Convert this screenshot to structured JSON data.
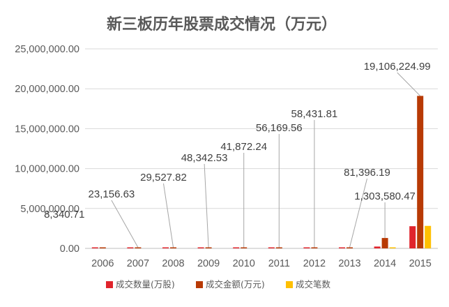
{
  "chart_data": {
    "type": "bar",
    "title": "新三板历年股票成交情况（万元）",
    "categories": [
      "2006",
      "2007",
      "2008",
      "2009",
      "2010",
      "2011",
      "2012",
      "2013",
      "2014",
      "2015"
    ],
    "series": [
      {
        "name": "成交数量(万股)",
        "color": "#E0242C",
        "values": [
          1000,
          10000,
          8000,
          11000,
          6000,
          7000,
          11000,
          20000,
          230000,
          2780000
        ]
      },
      {
        "name": "成交金额(万元)",
        "color": "#B83A05",
        "values": [
          8340.71,
          23156.63,
          29527.82,
          48342.53,
          41872.24,
          56169.56,
          58431.81,
          81396.19,
          1303580.47,
          19106224.99
        ]
      },
      {
        "name": "成交笔数",
        "color": "#FFC000",
        "values": [
          0,
          0,
          0,
          0,
          0,
          0,
          0,
          0,
          30000,
          2820000
        ]
      }
    ],
    "data_labels": [
      "8,340.71",
      "23,156.63",
      "29,527.82",
      "48,342.53",
      "41,872.24",
      "56,169.56",
      "58,431.81",
      "81,396.19",
      "1,303,580.47",
      "19,106,224.99"
    ],
    "ylim": [
      0,
      25000000
    ],
    "yticks": [
      "0.00",
      "5,000,000.00",
      "10,000,000.00",
      "15,000,000.00",
      "20,000,000.00",
      "25,000,000.00"
    ],
    "grid": true,
    "legend_position": "bottom"
  }
}
